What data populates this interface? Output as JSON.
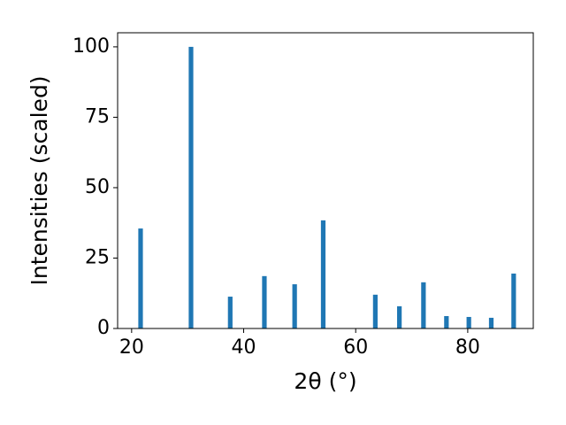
{
  "chart_data": {
    "type": "bar",
    "x": [
      21.6,
      30.6,
      37.6,
      43.7,
      49.1,
      54.2,
      63.5,
      67.8,
      72.1,
      76.2,
      80.2,
      84.2,
      88.2
    ],
    "values": [
      35.5,
      100,
      11.3,
      18.6,
      15.7,
      38.4,
      12,
      7.9,
      16.4,
      4.4,
      4.1,
      3.8,
      19.5
    ],
    "color": "#1f77b4",
    "xlabel": "2θ (°)",
    "ylabel": "Intensities (scaled)",
    "xlim": [
      17.5,
      91.7
    ],
    "ylim": [
      0,
      105
    ],
    "xticks": [
      20,
      40,
      60,
      80
    ],
    "yticks": [
      0,
      25,
      50,
      75,
      100
    ],
    "grid": false
  }
}
